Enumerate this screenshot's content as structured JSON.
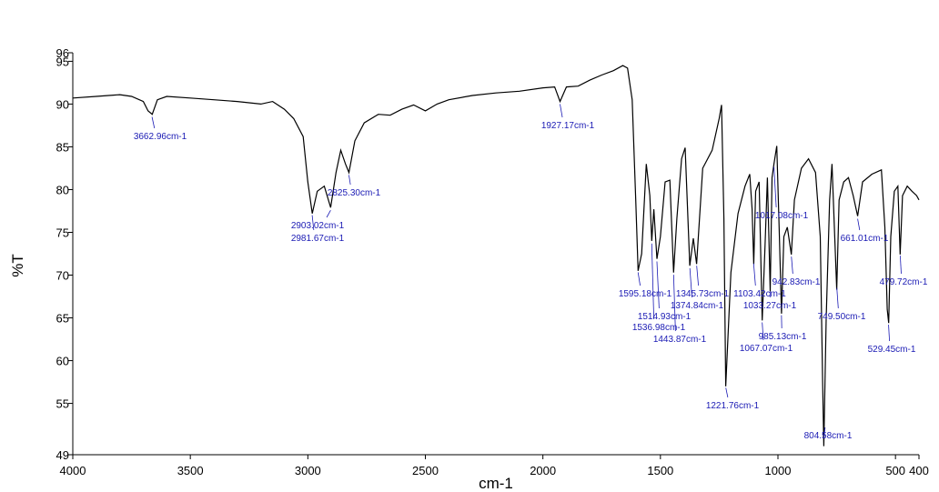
{
  "chart_data": {
    "type": "line",
    "x_label": "cm-1",
    "y_label": "%T",
    "xlim": [
      4000,
      400
    ],
    "ylim": [
      49,
      96
    ],
    "xticks": [
      4000,
      3500,
      3000,
      2500,
      2000,
      1500,
      1000,
      500,
      400
    ],
    "yticks": [
      96,
      95,
      90,
      85,
      80,
      75,
      70,
      65,
      60,
      55,
      49
    ],
    "x": [
      4000,
      3900,
      3800,
      3750,
      3700,
      3680,
      3662,
      3640,
      3600,
      3500,
      3400,
      3300,
      3200,
      3150,
      3100,
      3060,
      3020,
      3000,
      2981,
      2960,
      2930,
      2903,
      2880,
      2860,
      2840,
      2825,
      2800,
      2760,
      2700,
      2650,
      2600,
      2550,
      2500,
      2450,
      2400,
      2300,
      2200,
      2100,
      2000,
      1950,
      1927,
      1900,
      1850,
      1800,
      1750,
      1700,
      1660,
      1640,
      1620,
      1605,
      1595,
      1580,
      1560,
      1545,
      1537,
      1528,
      1515,
      1500,
      1480,
      1460,
      1444,
      1430,
      1410,
      1395,
      1375,
      1360,
      1346,
      1320,
      1280,
      1250,
      1240,
      1230,
      1222,
      1200,
      1170,
      1140,
      1120,
      1110,
      1103,
      1095,
      1080,
      1067,
      1055,
      1045,
      1033,
      1025,
      1017,
      1005,
      995,
      985,
      975,
      960,
      943,
      930,
      900,
      870,
      840,
      820,
      810,
      805,
      795,
      780,
      770,
      760,
      750,
      740,
      720,
      700,
      680,
      661,
      640,
      600,
      560,
      545,
      535,
      529,
      520,
      505,
      490,
      480,
      470,
      450,
      430,
      410,
      400
    ],
    "series": [
      {
        "color": "#000000",
        "values": [
          90.7,
          90.9,
          91.1,
          90.9,
          90.3,
          89.2,
          88.8,
          90.5,
          90.9,
          90.7,
          90.5,
          90.3,
          90.0,
          90.3,
          89.4,
          88.3,
          86.2,
          80.9,
          77.2,
          79.8,
          80.4,
          77.9,
          82.0,
          84.6,
          83.0,
          82.0,
          85.7,
          87.8,
          88.8,
          88.7,
          89.4,
          89.9,
          89.2,
          90.0,
          90.5,
          91.0,
          91.3,
          91.5,
          91.9,
          92.0,
          90.3,
          92.0,
          92.1,
          92.8,
          93.4,
          93.9,
          94.5,
          94.2,
          90.5,
          78.8,
          70.5,
          72.5,
          83.0,
          79.3,
          74.0,
          77.7,
          71.9,
          74.5,
          80.9,
          81.1,
          70.3,
          76.6,
          83.6,
          84.9,
          71.1,
          74.3,
          71.3,
          82.5,
          84.6,
          88.3,
          89.9,
          76.6,
          57.0,
          70.3,
          77.2,
          80.4,
          81.8,
          77.7,
          71.3,
          79.8,
          80.9,
          64.7,
          73.4,
          81.4,
          68.1,
          81.4,
          83.0,
          85.1,
          75.6,
          65.5,
          74.5,
          75.6,
          72.4,
          78.8,
          82.5,
          83.6,
          82.0,
          74.5,
          57.5,
          50.0,
          64.9,
          78.8,
          83.0,
          75.6,
          68.3,
          78.8,
          80.9,
          81.4,
          79.3,
          76.9,
          80.9,
          81.8,
          82.3,
          75.6,
          66.0,
          64.4,
          74.5,
          79.8,
          80.4,
          72.4,
          79.3,
          80.4,
          79.8,
          79.3,
          78.8
        ]
      }
    ],
    "annotations": [
      {
        "x": 3662.96,
        "label": "3662.96cm-1"
      },
      {
        "x": 2825.3,
        "label": "2825.30cm-1"
      },
      {
        "x": 2903.02,
        "label": "2903.02cm-1"
      },
      {
        "x": 2981.67,
        "label": "2981.67cm-1"
      },
      {
        "x": 1927.17,
        "label": "1927.17cm-1"
      },
      {
        "x": 1595.18,
        "label": "1595.18cm-1"
      },
      {
        "x": 1345.73,
        "label": "1345.73cm-1"
      },
      {
        "x": 1103.42,
        "label": "1103.42cm-1"
      },
      {
        "x": 942.83,
        "label": "942.83cm-1"
      },
      {
        "x": 479.72,
        "label": "479.72cm-1"
      },
      {
        "x": 1017.08,
        "label": "1017.08cm-1"
      },
      {
        "x": 661.01,
        "label": "661.01cm-1"
      },
      {
        "x": 1514.93,
        "label": "1514.93cm-1"
      },
      {
        "x": 1374.84,
        "label": "1374.84cm-1"
      },
      {
        "x": 1033.27,
        "label": "1033.27cm-1"
      },
      {
        "x": 1536.98,
        "label": "1536.98cm-1"
      },
      {
        "x": 749.5,
        "label": "749.50cm-1"
      },
      {
        "x": 1443.87,
        "label": "1443.87cm-1"
      },
      {
        "x": 985.13,
        "label": "985.13cm-1"
      },
      {
        "x": 1067.07,
        "label": "1067.07cm-1"
      },
      {
        "x": 529.45,
        "label": "529.45cm-1"
      },
      {
        "x": 1221.76,
        "label": "1221.76cm-1"
      },
      {
        "x": 804.58,
        "label": "804.58cm-1"
      }
    ]
  }
}
